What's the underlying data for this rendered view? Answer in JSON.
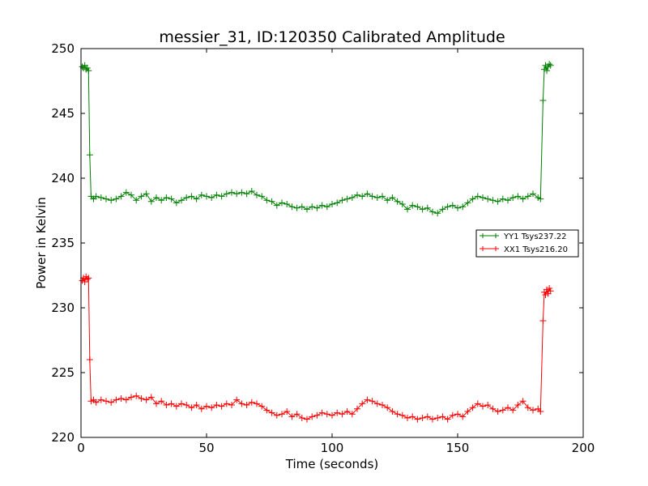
{
  "chart_data": {
    "type": "line",
    "title": "messier_31, ID:120350 Calibrated Amplitude",
    "xlabel": "Time (seconds)",
    "ylabel": "Power in Kelvin",
    "xlim": [
      0,
      200
    ],
    "ylim": [
      220,
      250
    ],
    "x_ticks": [
      0,
      50,
      100,
      150,
      200
    ],
    "y_ticks": [
      220,
      225,
      230,
      235,
      240,
      245,
      250
    ],
    "grid": false,
    "legend_position": "right",
    "marker": "+",
    "series": [
      {
        "name": "YY1 Tsys237.22",
        "color": "#008000",
        "points": [
          [
            0.5,
            248.6
          ],
          [
            1,
            248.5
          ],
          [
            1.5,
            248.7
          ],
          [
            2,
            248.4
          ],
          [
            2.5,
            248.5
          ],
          [
            3,
            248.3
          ],
          [
            3.5,
            241.8
          ],
          [
            4,
            238.6
          ],
          [
            5,
            238.4
          ],
          [
            6,
            238.6
          ],
          [
            8,
            238.5
          ],
          [
            10,
            238.4
          ],
          [
            12,
            238.3
          ],
          [
            14,
            238.4
          ],
          [
            16,
            238.6
          ],
          [
            18,
            238.9
          ],
          [
            20,
            238.7
          ],
          [
            22,
            238.3
          ],
          [
            24,
            238.6
          ],
          [
            26,
            238.8
          ],
          [
            28,
            238.2
          ],
          [
            30,
            238.5
          ],
          [
            32,
            238.3
          ],
          [
            34,
            238.5
          ],
          [
            36,
            238.4
          ],
          [
            38,
            238.1
          ],
          [
            40,
            238.3
          ],
          [
            42,
            238.5
          ],
          [
            44,
            238.6
          ],
          [
            46,
            238.4
          ],
          [
            48,
            238.7
          ],
          [
            50,
            238.6
          ],
          [
            52,
            238.5
          ],
          [
            54,
            238.7
          ],
          [
            56,
            238.6
          ],
          [
            58,
            238.8
          ],
          [
            60,
            238.9
          ],
          [
            62,
            238.8
          ],
          [
            64,
            238.9
          ],
          [
            66,
            238.8
          ],
          [
            68,
            239.0
          ],
          [
            70,
            238.7
          ],
          [
            72,
            238.6
          ],
          [
            74,
            238.3
          ],
          [
            76,
            238.2
          ],
          [
            78,
            237.9
          ],
          [
            80,
            238.1
          ],
          [
            82,
            238.0
          ],
          [
            84,
            237.8
          ],
          [
            86,
            237.7
          ],
          [
            88,
            237.8
          ],
          [
            90,
            237.6
          ],
          [
            92,
            237.8
          ],
          [
            94,
            237.7
          ],
          [
            96,
            237.9
          ],
          [
            98,
            237.8
          ],
          [
            100,
            238.0
          ],
          [
            102,
            238.1
          ],
          [
            104,
            238.3
          ],
          [
            106,
            238.4
          ],
          [
            108,
            238.5
          ],
          [
            110,
            238.7
          ],
          [
            112,
            238.6
          ],
          [
            114,
            238.8
          ],
          [
            116,
            238.6
          ],
          [
            118,
            238.5
          ],
          [
            120,
            238.6
          ],
          [
            122,
            238.3
          ],
          [
            124,
            238.5
          ],
          [
            126,
            238.2
          ],
          [
            128,
            238.0
          ],
          [
            130,
            237.6
          ],
          [
            132,
            237.9
          ],
          [
            134,
            237.8
          ],
          [
            136,
            237.6
          ],
          [
            138,
            237.7
          ],
          [
            140,
            237.4
          ],
          [
            142,
            237.3
          ],
          [
            144,
            237.6
          ],
          [
            146,
            237.8
          ],
          [
            148,
            237.9
          ],
          [
            150,
            237.7
          ],
          [
            152,
            237.8
          ],
          [
            154,
            238.1
          ],
          [
            156,
            238.4
          ],
          [
            158,
            238.6
          ],
          [
            160,
            238.5
          ],
          [
            162,
            238.4
          ],
          [
            164,
            238.3
          ],
          [
            166,
            238.2
          ],
          [
            168,
            238.4
          ],
          [
            170,
            238.3
          ],
          [
            172,
            238.5
          ],
          [
            174,
            238.6
          ],
          [
            176,
            238.4
          ],
          [
            178,
            238.6
          ],
          [
            180,
            238.8
          ],
          [
            182,
            238.5
          ],
          [
            183,
            238.4
          ],
          [
            184,
            246.0
          ],
          [
            184.5,
            248.4
          ],
          [
            185,
            248.7
          ],
          [
            185.5,
            248.3
          ],
          [
            186,
            248.6
          ],
          [
            186.5,
            248.8
          ],
          [
            187,
            248.7
          ]
        ]
      },
      {
        "name": "XX1 Tsys216.20",
        "color": "#ff0000",
        "points": [
          [
            0.5,
            232.1
          ],
          [
            1,
            232.3
          ],
          [
            1.5,
            232.0
          ],
          [
            2,
            232.4
          ],
          [
            2.5,
            232.2
          ],
          [
            3,
            232.3
          ],
          [
            3.5,
            226.0
          ],
          [
            4,
            222.8
          ],
          [
            5,
            222.9
          ],
          [
            6,
            222.7
          ],
          [
            8,
            222.9
          ],
          [
            10,
            222.8
          ],
          [
            12,
            222.7
          ],
          [
            14,
            222.9
          ],
          [
            16,
            223.0
          ],
          [
            18,
            222.9
          ],
          [
            20,
            223.1
          ],
          [
            22,
            223.2
          ],
          [
            24,
            223.0
          ],
          [
            26,
            222.9
          ],
          [
            28,
            223.1
          ],
          [
            30,
            222.6
          ],
          [
            32,
            222.8
          ],
          [
            34,
            222.5
          ],
          [
            36,
            222.6
          ],
          [
            38,
            222.4
          ],
          [
            40,
            222.6
          ],
          [
            42,
            222.5
          ],
          [
            44,
            222.3
          ],
          [
            46,
            222.5
          ],
          [
            48,
            222.2
          ],
          [
            50,
            222.4
          ],
          [
            52,
            222.3
          ],
          [
            54,
            222.5
          ],
          [
            56,
            222.4
          ],
          [
            58,
            222.6
          ],
          [
            60,
            222.5
          ],
          [
            62,
            222.9
          ],
          [
            64,
            222.6
          ],
          [
            66,
            222.5
          ],
          [
            68,
            222.7
          ],
          [
            70,
            222.6
          ],
          [
            72,
            222.4
          ],
          [
            74,
            222.1
          ],
          [
            76,
            221.9
          ],
          [
            78,
            221.7
          ],
          [
            80,
            221.8
          ],
          [
            82,
            222.0
          ],
          [
            84,
            221.6
          ],
          [
            86,
            221.8
          ],
          [
            88,
            221.5
          ],
          [
            90,
            221.4
          ],
          [
            92,
            221.6
          ],
          [
            94,
            221.7
          ],
          [
            96,
            221.9
          ],
          [
            98,
            221.8
          ],
          [
            100,
            221.7
          ],
          [
            102,
            221.9
          ],
          [
            104,
            221.8
          ],
          [
            106,
            222.0
          ],
          [
            108,
            221.8
          ],
          [
            110,
            222.2
          ],
          [
            112,
            222.6
          ],
          [
            114,
            222.9
          ],
          [
            116,
            222.8
          ],
          [
            118,
            222.6
          ],
          [
            120,
            222.5
          ],
          [
            122,
            222.3
          ],
          [
            124,
            222.0
          ],
          [
            126,
            221.8
          ],
          [
            128,
            221.7
          ],
          [
            130,
            221.5
          ],
          [
            132,
            221.6
          ],
          [
            134,
            221.4
          ],
          [
            136,
            221.5
          ],
          [
            138,
            221.6
          ],
          [
            140,
            221.4
          ],
          [
            142,
            221.5
          ],
          [
            144,
            221.6
          ],
          [
            146,
            221.4
          ],
          [
            148,
            221.7
          ],
          [
            150,
            221.8
          ],
          [
            152,
            221.6
          ],
          [
            154,
            222.0
          ],
          [
            156,
            222.3
          ],
          [
            158,
            222.6
          ],
          [
            160,
            222.4
          ],
          [
            162,
            222.5
          ],
          [
            164,
            222.2
          ],
          [
            166,
            222.0
          ],
          [
            168,
            222.1
          ],
          [
            170,
            222.3
          ],
          [
            172,
            222.1
          ],
          [
            174,
            222.5
          ],
          [
            176,
            222.8
          ],
          [
            178,
            222.3
          ],
          [
            180,
            222.1
          ],
          [
            182,
            222.2
          ],
          [
            183,
            222.0
          ],
          [
            184,
            229.0
          ],
          [
            184.5,
            231.2
          ],
          [
            185,
            231.0
          ],
          [
            185.5,
            231.4
          ],
          [
            186,
            231.1
          ],
          [
            186.5,
            231.5
          ],
          [
            187,
            231.3
          ]
        ]
      }
    ]
  }
}
